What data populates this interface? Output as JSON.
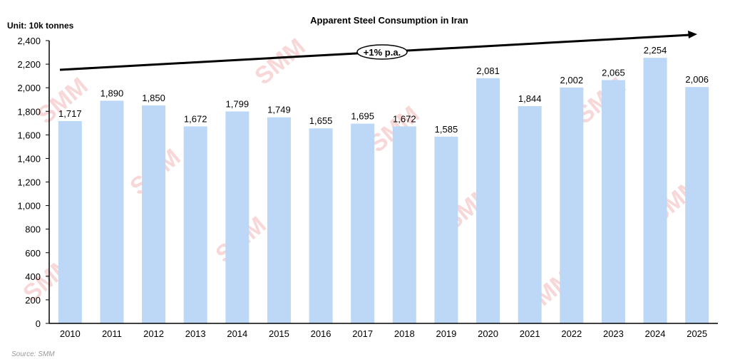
{
  "chart_data": {
    "type": "bar",
    "title": "Apparent Steel Consumption in Iran",
    "unit_label": "Unit: 10k tonnes",
    "categories": [
      "2010",
      "2011",
      "2012",
      "2013",
      "2014",
      "2015",
      "2016",
      "2017",
      "2018",
      "2019",
      "2020",
      "2021",
      "2022",
      "2023",
      "2024",
      "2025"
    ],
    "values": [
      1717,
      1890,
      1850,
      1672,
      1799,
      1749,
      1655,
      1695,
      1672,
      1585,
      2081,
      1844,
      2002,
      2065,
      2254,
      2006
    ],
    "value_labels": [
      "1,717",
      "1,890",
      "1,850",
      "1,672",
      "1,799",
      "1,749",
      "1,655",
      "1,695",
      "1,672",
      "1,585",
      "2,081",
      "1,844",
      "2,002",
      "2,065",
      "2,254",
      "2,006"
    ],
    "ylim": [
      0,
      2400
    ],
    "yticks": [
      0,
      200,
      400,
      600,
      800,
      1000,
      1200,
      1400,
      1600,
      1800,
      2000,
      2200,
      2400
    ],
    "ytick_labels": [
      "0",
      "200",
      "400",
      "600",
      "800",
      "1,000",
      "1,200",
      "1,400",
      "1,600",
      "1,800",
      "2,000",
      "2,200",
      "2,400"
    ],
    "xlabel": "",
    "ylabel": "",
    "grid": false,
    "trend_annotation": "+1% p.a.",
    "source": "Source: SMM",
    "watermark": "SMM",
    "bar_color": "#bdd7f7"
  }
}
